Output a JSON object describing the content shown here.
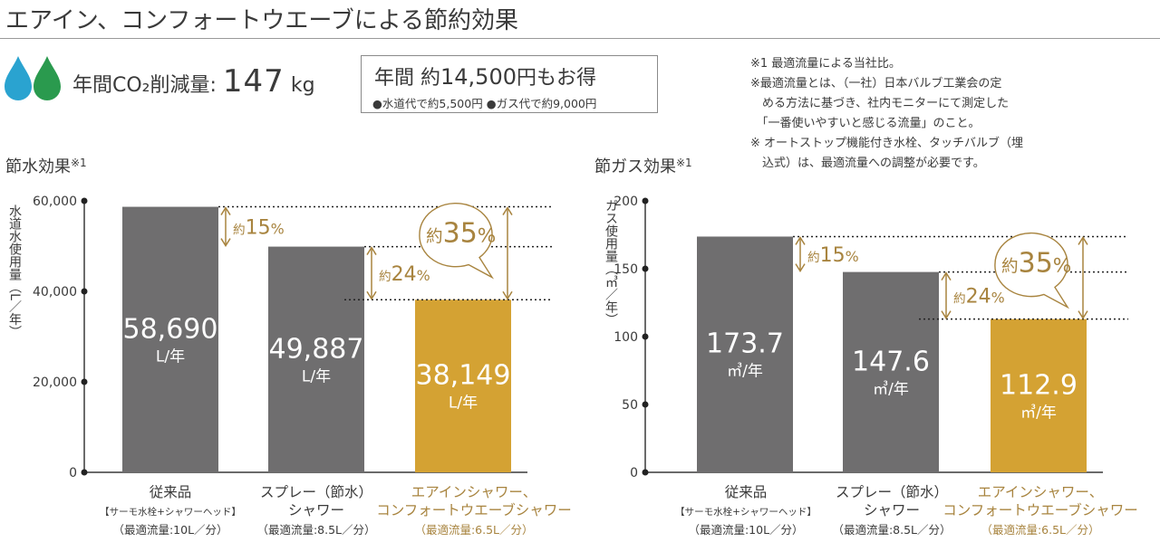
{
  "title": "エアイン、コンフォートウエーブによる節約効果",
  "co2": {
    "label": "年間CO₂削減量:",
    "value": "147",
    "unit": "kg"
  },
  "savings": {
    "label": "年間 約",
    "amount": "14,500",
    "suffix": "円もお得",
    "water": "●水道代で約5,500円",
    "gas": "●ガス代で約9,000円"
  },
  "notes": [
    "※1 最適流量による当社比。",
    "※最適流量とは、（一社）日本バルブ工業会の定",
    "　める方法に基づき、社内モニターにて測定した",
    "　「一番使いやすいと感じる流量」のこと。",
    "※ オートストップ機能付き水栓、タッチバルブ（埋",
    "　込式）は、最適流量への調整が必要です。"
  ],
  "colors": {
    "gray": "#6f6e6f",
    "gold": "#d4a233",
    "gold_text": "#a8843f",
    "water_drop": "#2aa3d0",
    "green_drop": "#2a9a4e"
  },
  "chart_data": [
    {
      "type": "bar",
      "title": "節水効果",
      "title_note": "※1",
      "ylabel": "水道水使用量（L／年）",
      "ylim": [
        0,
        60000
      ],
      "yticks": [
        "0",
        "20,000",
        "40,000",
        "60,000"
      ],
      "ytick_values": [
        0,
        20000,
        40000,
        60000
      ],
      "categories": [
        "従来品",
        "スプレー（節水）シャワー",
        "エアインシャワー、コンフォートウエーブシャワー"
      ],
      "category_lines": [
        [
          "従来品",
          "【サーモ水栓+シャワーヘッド】",
          "（最適流量:10L／分）"
        ],
        [
          "スプレー（節水）",
          "シャワー",
          "（最適流量:8.5L／分）"
        ],
        [
          "エアインシャワー、",
          "コンフォートウエーブシャワー",
          "（最適流量:6.5L／分）"
        ]
      ],
      "values": [
        58690,
        49887,
        38149
      ],
      "value_labels": [
        "58,690",
        "49,887",
        "38,149"
      ],
      "unit_label": "L/年",
      "annotations": [
        "約15%",
        "約24%",
        "約35%"
      ],
      "grid": false
    },
    {
      "type": "bar",
      "title": "節ガス効果",
      "title_note": "※1",
      "ylabel": "ガス使用量（㎥／年）",
      "ylim": [
        0,
        200
      ],
      "yticks": [
        "0",
        "50",
        "100",
        "150",
        "200"
      ],
      "ytick_values": [
        0,
        50,
        100,
        150,
        200
      ],
      "categories": [
        "従来品",
        "スプレー（節水）シャワー",
        "エアインシャワー、コンフォートウエーブシャワー"
      ],
      "category_lines": [
        [
          "従来品",
          "【サーモ水栓+シャワーヘッド】",
          "（最適流量:10L／分）"
        ],
        [
          "スプレー（節水）",
          "シャワー",
          "（最適流量:8.5L／分）"
        ],
        [
          "エアインシャワー、",
          "コンフォートウエーブシャワー",
          "（最適流量:6.5L／分）"
        ]
      ],
      "values": [
        173.7,
        147.6,
        112.9
      ],
      "value_labels": [
        "173.7",
        "147.6",
        "112.9"
      ],
      "unit_label": "㎥/年",
      "annotations": [
        "約15%",
        "約24%",
        "約35%"
      ],
      "grid": false
    }
  ]
}
